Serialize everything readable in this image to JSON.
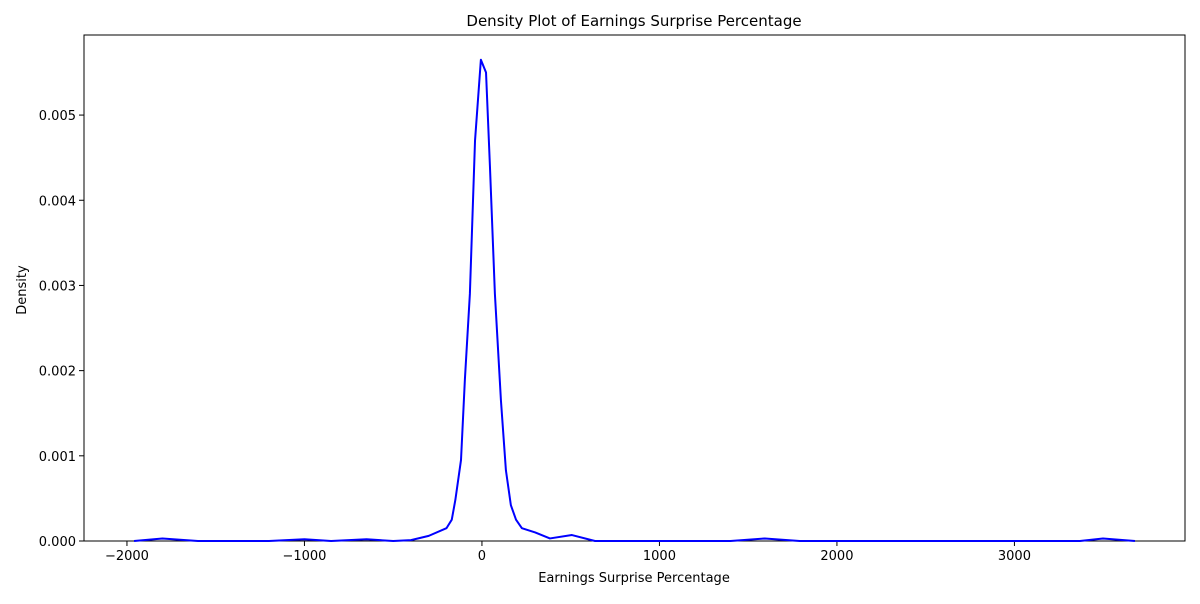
{
  "chart_data": {
    "type": "line",
    "title": "Density Plot of Earnings Surprise Percentage",
    "x_label": "Earnings Surprise Percentage",
    "y_label": "Density",
    "x": [
      -1960,
      -1800,
      -1600,
      -1200,
      -1000,
      -850,
      -650,
      -500,
      -400,
      -300,
      -200,
      -170,
      -150,
      -118,
      -96,
      -68,
      -39,
      -6,
      23,
      45,
      73,
      107,
      135,
      163,
      192,
      225,
      300,
      383,
      507,
      637,
      1400,
      1594,
      1790,
      3369,
      3499,
      3679
    ],
    "series": [
      {
        "name": "Density",
        "color": "#0000ff",
        "values": [
          0,
          3e-05,
          0,
          0,
          2e-05,
          0,
          2e-05,
          0,
          1e-05,
          6e-05,
          0.00015,
          0.00025,
          0.00048,
          0.00095,
          0.0019,
          0.0029,
          0.0047,
          0.00565,
          0.0055,
          0.0044,
          0.0029,
          0.00165,
          0.00083,
          0.00042,
          0.00025,
          0.00015,
          0.0001,
          3e-05,
          7e-05,
          0,
          0,
          3e-05,
          0,
          0,
          3e-05,
          0
        ]
      }
    ],
    "xlim": [
      -2242,
      3961
    ],
    "ylim": [
      0,
      0.00594
    ],
    "xticks": [
      {
        "value": -2000,
        "label": "−2000"
      },
      {
        "value": -1000,
        "label": "−1000"
      },
      0,
      1000,
      2000,
      3000
    ],
    "yticks": [
      {
        "value": 0,
        "label": "0.000"
      },
      0.001,
      0.002,
      0.003,
      0.004,
      0.005
    ]
  }
}
